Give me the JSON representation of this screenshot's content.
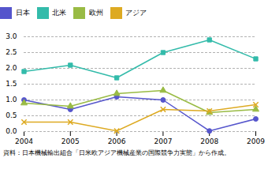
{
  "chart_data": {
    "type": "line",
    "x": [
      2004,
      2005,
      2006,
      2007,
      2008,
      2009
    ],
    "series": [
      {
        "name": "日本",
        "color": "#5555cc",
        "marker": "circle",
        "values": [
          1.0,
          0.7,
          1.1,
          1.0,
          0.02,
          0.4
        ]
      },
      {
        "name": "北米",
        "color": "#33bbaa",
        "marker": "square",
        "values": [
          1.9,
          2.1,
          1.7,
          2.5,
          2.9,
          2.3
        ]
      },
      {
        "name": "欧州",
        "color": "#99bb44",
        "marker": "triangle",
        "values": [
          0.9,
          0.8,
          1.2,
          1.3,
          0.6,
          0.7
        ]
      },
      {
        "name": "アジア",
        "color": "#ddaa22",
        "marker": "x",
        "values": [
          0.3,
          0.3,
          0.02,
          0.7,
          0.65,
          0.85
        ]
      }
    ],
    "xlim": [
      2004,
      2009
    ],
    "xticks": [
      2004,
      2005,
      2006,
      2007,
      2008,
      2009
    ],
    "ylim": [
      0.0,
      3.0
    ],
    "yticks": [
      {
        "value": 0.0,
        "label": "0.0"
      },
      0.5,
      {
        "value": 1.0,
        "label": "1.0"
      },
      1.5,
      {
        "value": 2.0,
        "label": "2.0"
      },
      2.5,
      {
        "value": 3.0,
        "label": "3.0"
      }
    ],
    "grid": true,
    "caption": "資料：日本機械輸出組合「日米欧アジア機械産業の国際競争力実態」から作成。"
  }
}
